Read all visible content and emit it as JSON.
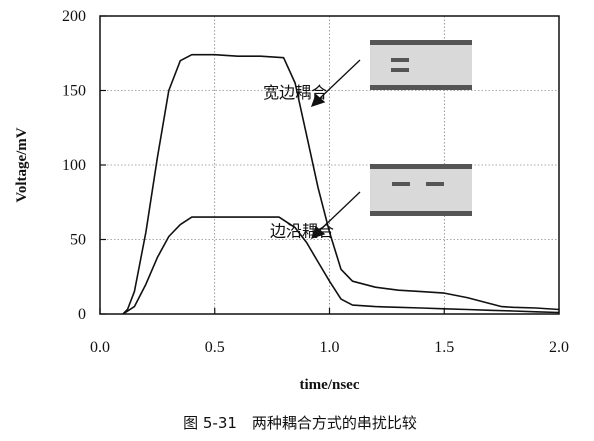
{
  "chart_data": {
    "type": "line",
    "xlabel": "time/nsec",
    "ylabel": "Voltage/mV",
    "xlim": [
      0,
      2.0
    ],
    "ylim": [
      0,
      200
    ],
    "x_ticks": [
      "0.0",
      "0.5",
      "1.0",
      "1.5",
      "2.0"
    ],
    "y_ticks": [
      "0",
      "50",
      "100",
      "150",
      "200"
    ],
    "x_tick_values": [
      0,
      0.5,
      1.0,
      1.5,
      2.0
    ],
    "y_tick_values": [
      0,
      50,
      100,
      150,
      200
    ],
    "grid": true,
    "caption": "图 5-31　两种耦合方式的串扰比较",
    "series": [
      {
        "name": "宽边耦合",
        "x": [
          0.1,
          0.12,
          0.15,
          0.2,
          0.25,
          0.3,
          0.35,
          0.4,
          0.5,
          0.6,
          0.7,
          0.8,
          0.85,
          0.9,
          0.95,
          1.0,
          1.05,
          1.1,
          1.2,
          1.3,
          1.4,
          1.5,
          1.6,
          1.7,
          1.75,
          1.8,
          1.9,
          2.0
        ],
        "y": [
          0,
          3,
          15,
          55,
          105,
          150,
          170,
          174,
          174,
          173,
          173,
          172,
          155,
          120,
          85,
          55,
          30,
          22,
          18,
          16,
          15,
          14,
          11,
          7,
          5,
          4.5,
          4,
          3
        ]
      },
      {
        "name": "边沿耦合",
        "x": [
          0.1,
          0.15,
          0.2,
          0.25,
          0.3,
          0.35,
          0.4,
          0.5,
          0.6,
          0.7,
          0.78,
          0.85,
          0.9,
          0.95,
          1.0,
          1.05,
          1.1,
          1.2,
          1.3,
          1.4,
          1.5,
          1.6,
          1.7,
          1.8,
          1.9,
          2.0
        ],
        "y": [
          0,
          5,
          20,
          38,
          52,
          60,
          65,
          65,
          65,
          65,
          65,
          58,
          48,
          35,
          22,
          10,
          6,
          5,
          4.5,
          4,
          3.5,
          3,
          2.5,
          2,
          1.5,
          1
        ]
      }
    ],
    "annotations": [
      {
        "text": "宽边耦合",
        "series": "宽边耦合",
        "at": [
          0.85,
          145
        ]
      },
      {
        "text": "边沿耦合",
        "series": "边沿耦合",
        "at": [
          0.88,
          52
        ]
      }
    ]
  }
}
